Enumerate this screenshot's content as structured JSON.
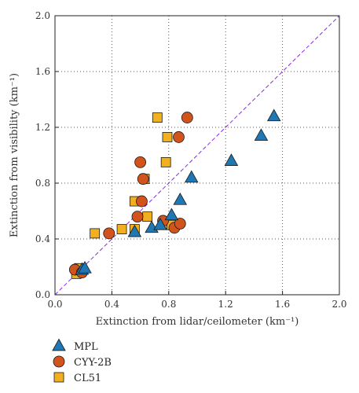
{
  "chart_data": {
    "type": "scatter",
    "title": "",
    "xlabel": "Extinction from lidar/ceilometer (km⁻¹)",
    "ylabel": "Extinction from visibility (km⁻¹)",
    "xlim": [
      0.0,
      2.0
    ],
    "ylim": [
      0.0,
      2.0
    ],
    "xticks": [
      "0.0",
      "0.4",
      "0.8",
      "1.2",
      "1.6",
      "2.0"
    ],
    "yticks": [
      "0.0",
      "0.4",
      "0.8",
      "1.2",
      "1.6",
      "2.0"
    ],
    "grid": true,
    "reference_line": {
      "style": "dashed",
      "color": "#8a2be2",
      "from": [
        0,
        0
      ],
      "to": [
        2,
        2
      ]
    },
    "legend_position": "below",
    "series": [
      {
        "name": "MPL",
        "marker": "triangle",
        "color": "#1f77b4",
        "points": [
          [
            0.19,
            0.18
          ],
          [
            0.21,
            0.19
          ],
          [
            0.56,
            0.45
          ],
          [
            0.68,
            0.48
          ],
          [
            0.74,
            0.5
          ],
          [
            0.82,
            0.57
          ],
          [
            0.88,
            0.68
          ],
          [
            0.96,
            0.84
          ],
          [
            1.24,
            0.96
          ],
          [
            1.45,
            1.14
          ],
          [
            1.54,
            1.28
          ]
        ]
      },
      {
        "name": "CYY-2B",
        "marker": "circle",
        "color": "#d2541c",
        "points": [
          [
            0.14,
            0.18
          ],
          [
            0.19,
            0.16
          ],
          [
            0.38,
            0.44
          ],
          [
            0.58,
            0.56
          ],
          [
            0.6,
            0.95
          ],
          [
            0.61,
            0.67
          ],
          [
            0.62,
            0.83
          ],
          [
            0.76,
            0.53
          ],
          [
            0.84,
            0.48
          ],
          [
            0.88,
            0.51
          ],
          [
            0.87,
            1.13
          ],
          [
            0.93,
            1.27
          ]
        ]
      },
      {
        "name": "CL51",
        "marker": "square",
        "color": "#f2b01e",
        "points": [
          [
            0.15,
            0.15
          ],
          [
            0.17,
            0.19
          ],
          [
            0.28,
            0.44
          ],
          [
            0.47,
            0.47
          ],
          [
            0.56,
            0.47
          ],
          [
            0.56,
            0.67
          ],
          [
            0.63,
            0.83
          ],
          [
            0.65,
            0.56
          ],
          [
            0.72,
            1.27
          ],
          [
            0.76,
            0.51
          ],
          [
            0.78,
            0.95
          ],
          [
            0.79,
            1.13
          ],
          [
            0.82,
            0.5
          ]
        ]
      }
    ]
  }
}
